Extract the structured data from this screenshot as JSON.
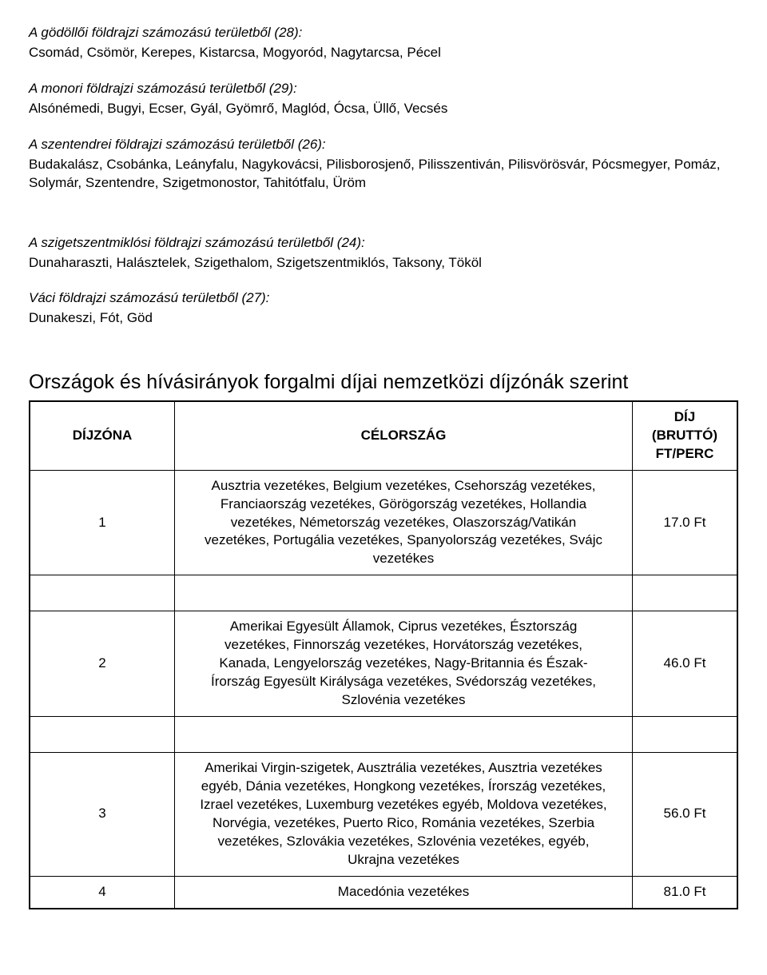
{
  "regions": [
    {
      "title": "A gödöllői földrajzi számozású területből (28):",
      "body": "Csomád, Csömör, Kerepes, Kistarcsa, Mogyoród, Nagytarcsa, Pécel"
    },
    {
      "title": "A monori földrajzi számozású területből (29):",
      "body": "Alsónémedi, Bugyi, Ecser, Gyál, Gyömrő, Maglód, Ócsa, Üllő, Vecsés"
    },
    {
      "title": "A szentendrei földrajzi számozású területből (26):",
      "body": "Budakalász, Csobánka, Leányfalu, Nagykovácsi, Pilisborosjenő, Pilisszentiván, Pilisvörösvár, Pócsmegyer, Pomáz, Solymár, Szentendre, Szigetmonostor, Tahitótfalu, Üröm"
    },
    {
      "title": "A szigetszentmiklósi földrajzi számozású területből (24):",
      "body": "Dunaharaszti, Halásztelek, Szigethalom, Szigetszentmiklós, Taksony, Tököl"
    },
    {
      "title": "Váci földrajzi számozású területből (27):",
      "body": "Dunakeszi, Fót, Göd"
    }
  ],
  "table_heading": "Országok és hívásirányok forgalmi díjai nemzetközi díjzónák szerint",
  "table": {
    "headers": {
      "zone": "DÍJZÓNA",
      "destination": "CÉLORSZÁG",
      "price": "DÍJ (BRUTTÓ) FT/PERC"
    },
    "rows": [
      {
        "zone": "1",
        "destination": "Ausztria vezetékes, Belgium vezetékes, Csehország vezetékes, Franciaország vezetékes, Görögország vezetékes, Hollandia vezetékes, Németország vezetékes, Olaszország/Vatikán vezetékes, Portugália vezetékes, Spanyolország vezetékes, Svájc vezetékes",
        "price": "17.0 Ft",
        "spacer_before": false
      },
      {
        "zone": "2",
        "destination": "Amerikai Egyesült Államok, Ciprus vezetékes, Észtország vezetékes, Finnország vezetékes, Horvátország vezetékes, Kanada, Lengyelország vezetékes, Nagy-Britannia és Észak-Írország Egyesült Királysága vezetékes, Svédország vezetékes, Szlovénia vezetékes",
        "price": "46.0 Ft",
        "spacer_before": true
      },
      {
        "zone": "3",
        "destination": "Amerikai Virgin-szigetek, Ausztrália vezetékes, Ausztria vezetékes egyéb, Dánia vezetékes, Hongkong vezetékes, Írország vezetékes, Izrael vezetékes, Luxemburg vezetékes egyéb, Moldova vezetékes, Norvégia, vezetékes, Puerto Rico, Románia vezetékes, Szerbia vezetékes, Szlovákia vezetékes, Szlovénia vezetékes, egyéb, Ukrajna vezetékes",
        "price": "56.0 Ft",
        "spacer_before": true
      },
      {
        "zone": "4",
        "destination": "Macedónia vezetékes",
        "price": "81.0 Ft",
        "spacer_before": false
      }
    ]
  }
}
